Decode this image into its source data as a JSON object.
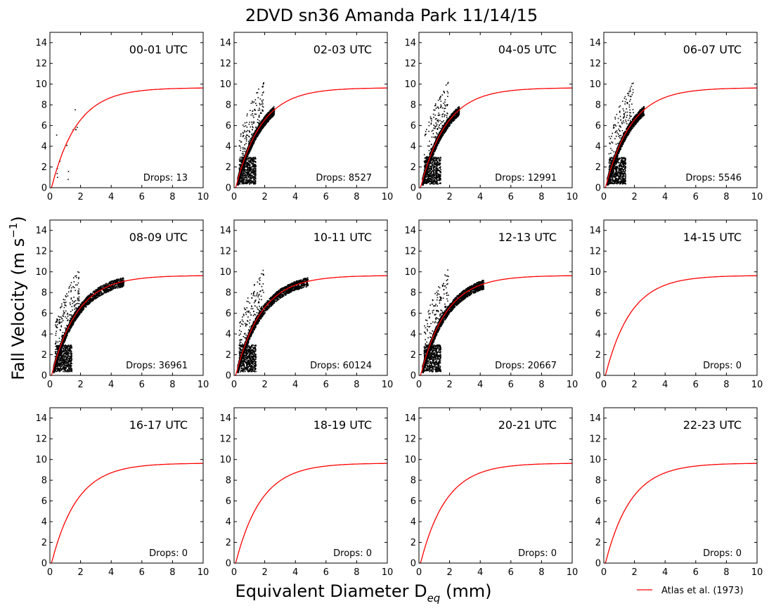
{
  "figure": {
    "title": "2DVD sn36 Amanda Park 11/14/15",
    "ylabel": "Fall Velocity (m s",
    "ylabel_sup": "−1",
    "ylabel_end": ")",
    "xlabel": "Equivalent Diameter D",
    "xlabel_sub": "eq",
    "xlabel_end": " (mm)",
    "legend": {
      "label": "Atlas et al. (1973)",
      "color": "#ff0000",
      "position": "bottom-right"
    }
  },
  "chart_data": {
    "type": "scatter",
    "grid": false,
    "xlim": [
      0,
      10
    ],
    "ylim": [
      0,
      15
    ],
    "xticks": [
      0,
      2,
      4,
      6,
      8,
      10
    ],
    "yticks": [
      0,
      2,
      4,
      6,
      8,
      10,
      12,
      14
    ],
    "curve": {
      "name": "Atlas et al. (1973)",
      "color": "#ff0000",
      "formula": "v = 9.65 - 10.3 * exp(-0.6 * D)"
    },
    "panels": [
      {
        "label": "00-01 UTC",
        "drops_text": "Drops: 13",
        "drops": 13
      },
      {
        "label": "02-03 UTC",
        "drops_text": "Drops: 8527",
        "drops": 8527
      },
      {
        "label": "04-05 UTC",
        "drops_text": "Drops: 12991",
        "drops": 12991
      },
      {
        "label": "06-07 UTC",
        "drops_text": "Drops: 5546",
        "drops": 5546
      },
      {
        "label": "08-09 UTC",
        "drops_text": "Drops: 36961",
        "drops": 36961
      },
      {
        "label": "10-11 UTC",
        "drops_text": "Drops: 60124",
        "drops": 60124
      },
      {
        "label": "12-13 UTC",
        "drops_text": "Drops: 20667",
        "drops": 20667
      },
      {
        "label": "14-15 UTC",
        "drops_text": "Drops: 0",
        "drops": 0
      },
      {
        "label": "16-17 UTC",
        "drops_text": "Drops: 0",
        "drops": 0
      },
      {
        "label": "18-19 UTC",
        "drops_text": "Drops: 0",
        "drops": 0
      },
      {
        "label": "20-21 UTC",
        "drops_text": "Drops: 0",
        "drops": 0
      },
      {
        "label": "22-23 UTC",
        "drops_text": "Drops: 0",
        "drops": 0
      }
    ]
  }
}
